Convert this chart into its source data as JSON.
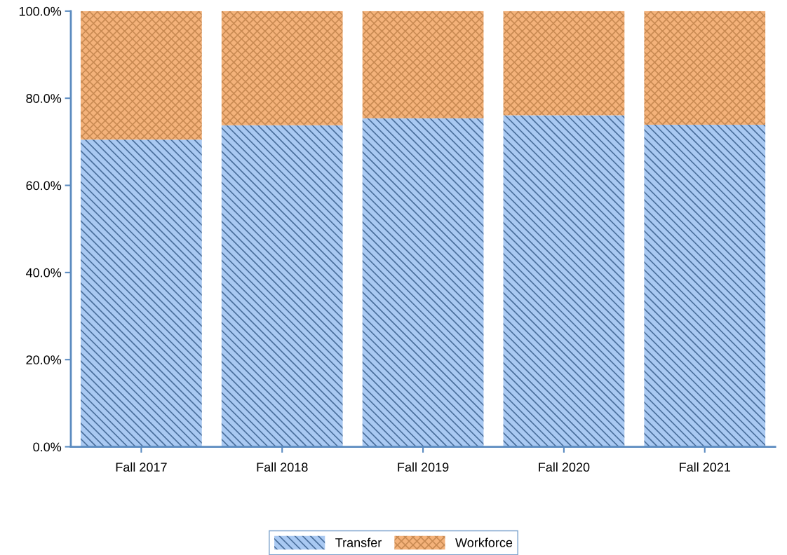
{
  "chart_data": {
    "type": "bar",
    "stacked": true,
    "categories": [
      "Fall 2017",
      "Fall 2018",
      "Fall 2019",
      "Fall 2020",
      "Fall 2021"
    ],
    "series": [
      {
        "name": "Transfer",
        "color": "#a9c9f2",
        "values": [
          70.5,
          73.8,
          75.4,
          76.1,
          73.9
        ]
      },
      {
        "name": "Workforce",
        "color": "#f4b27a",
        "values": [
          29.5,
          26.2,
          24.6,
          23.9,
          26.1
        ]
      }
    ],
    "ylim": [
      0,
      100
    ],
    "yticks": [
      {
        "value": 0,
        "label": "0.0%"
      },
      {
        "value": 20,
        "label": "20.0%"
      },
      {
        "value": 40,
        "label": "40.0%"
      },
      {
        "value": 60,
        "label": "60.0%"
      },
      {
        "value": 80,
        "label": "80.0%"
      },
      {
        "value": 100,
        "label": "100.0%"
      }
    ],
    "legend": "bottom",
    "grid": false
  }
}
